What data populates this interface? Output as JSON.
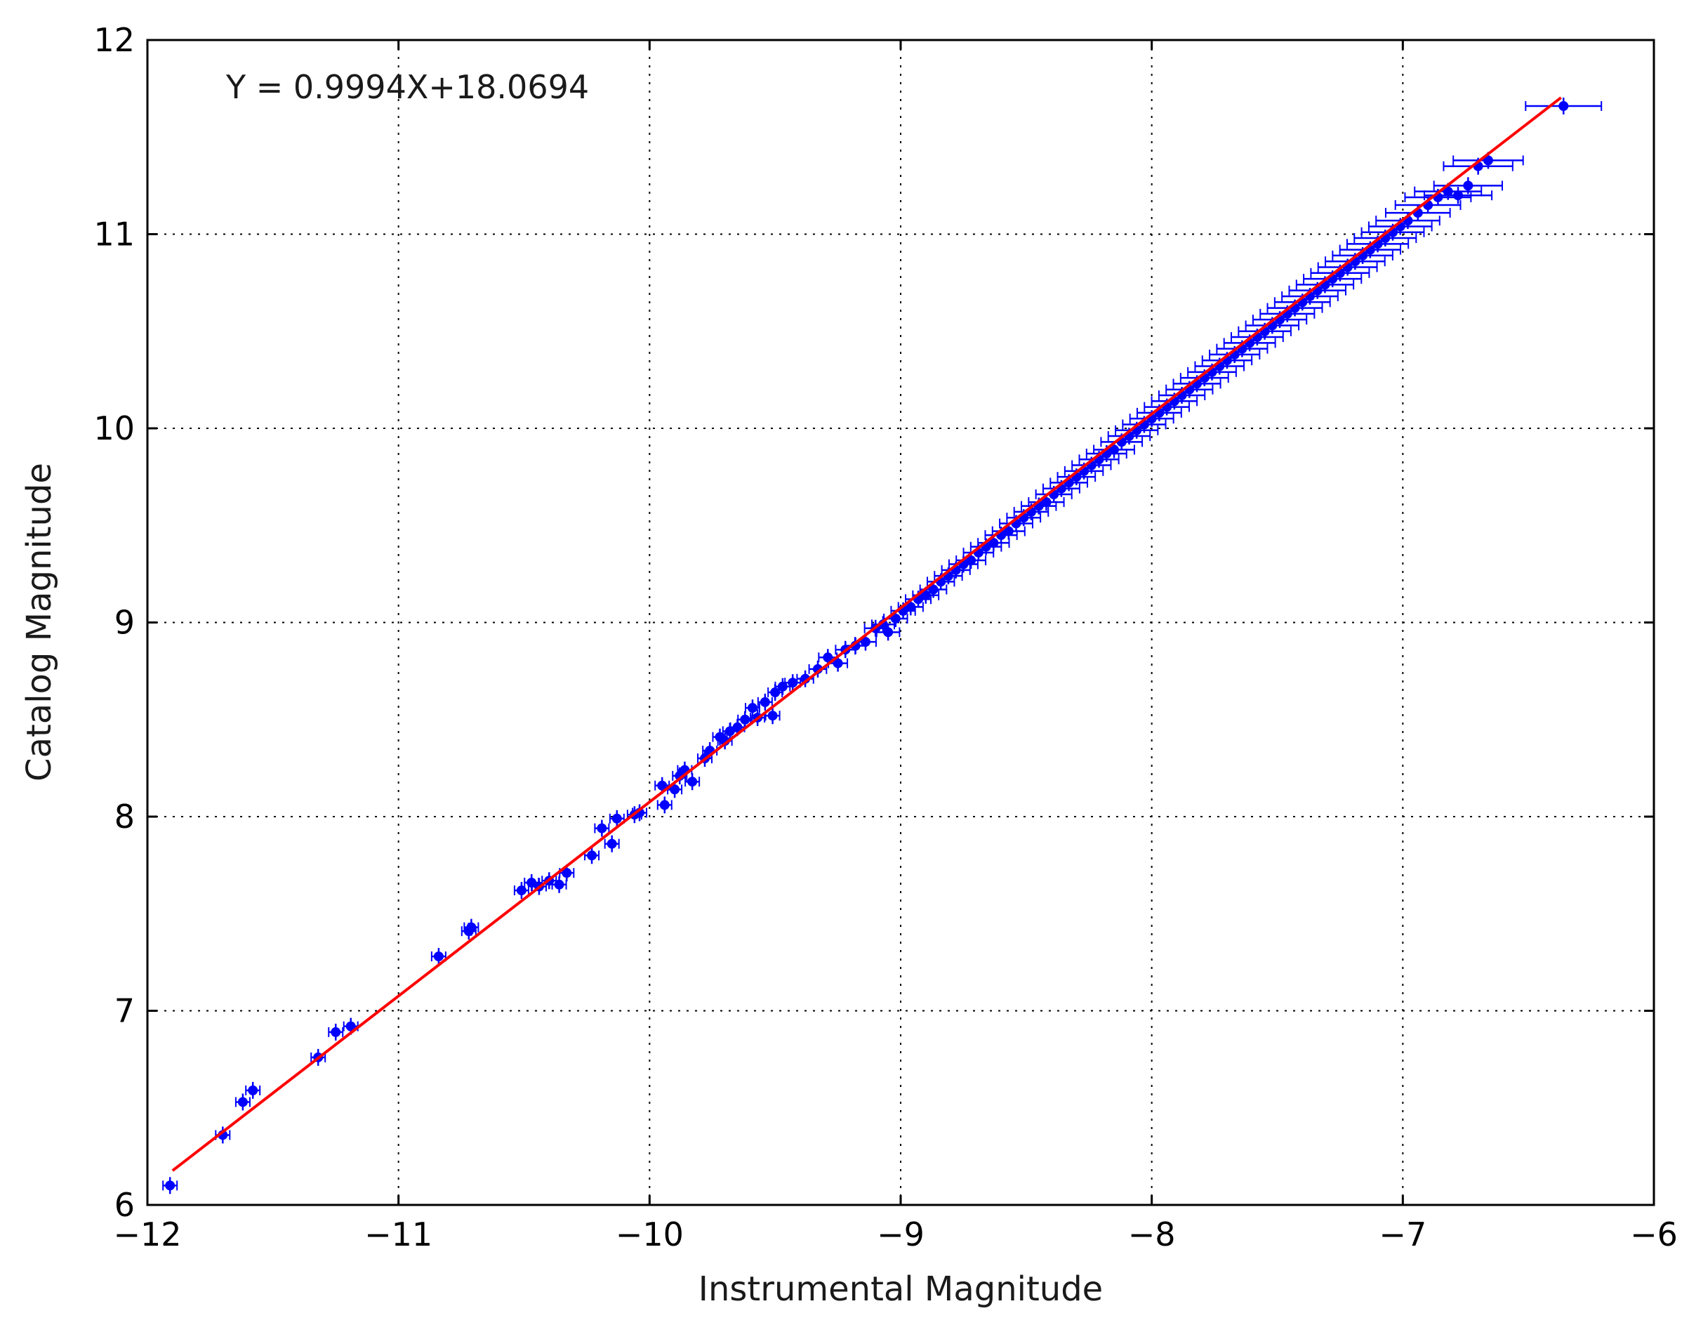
{
  "chart_data": {
    "type": "scatter",
    "title": "",
    "xlabel": "Instrumental Magnitude",
    "ylabel": "Catalog Magnitude",
    "xlim": [
      -12,
      -6
    ],
    "ylim": [
      6,
      12
    ],
    "xticks": [
      -12,
      -11,
      -10,
      -9,
      -8,
      -7,
      -6
    ],
    "yticks": [
      6,
      7,
      8,
      9,
      10,
      11,
      12
    ],
    "xtick_labels": [
      "−12",
      "−11",
      "−10",
      "−9",
      "−8",
      "−7",
      "−6"
    ],
    "ytick_labels": [
      "6",
      "7",
      "8",
      "9",
      "10",
      "11",
      "12"
    ],
    "grid": true,
    "annotation": "Y = 0.9994X+18.0694",
    "colors": {
      "points": "#0000ff",
      "fit": "#ff0000",
      "grid": "#000000",
      "axes": "#000000"
    },
    "fit": {
      "slope": 0.9994,
      "intercept": 18.0694,
      "x_range": [
        -11.9,
        -6.37
      ]
    },
    "series": [
      {
        "kind": "errorbar",
        "points": [
          [
            -11.91,
            6.1
          ],
          [
            -11.7,
            6.36
          ],
          [
            -11.62,
            6.53
          ],
          [
            -11.58,
            6.59
          ],
          [
            -11.32,
            6.76
          ],
          [
            -11.25,
            6.89
          ],
          [
            -11.19,
            6.92
          ],
          [
            -10.84,
            7.28
          ],
          [
            -10.72,
            7.41
          ],
          [
            -10.71,
            7.43
          ],
          [
            -10.51,
            7.62
          ],
          [
            -10.47,
            7.66
          ],
          [
            -10.44,
            7.64
          ],
          [
            -10.4,
            7.67
          ],
          [
            -10.36,
            7.65
          ],
          [
            -10.33,
            7.71
          ],
          [
            -10.23,
            7.8
          ],
          [
            -10.19,
            7.94
          ],
          [
            -10.15,
            7.86
          ],
          [
            -10.13,
            7.99
          ],
          [
            -10.06,
            8.01
          ],
          [
            -10.04,
            8.02
          ],
          [
            -9.95,
            8.16
          ],
          [
            -9.94,
            8.06
          ],
          [
            -9.9,
            8.14
          ],
          [
            -9.88,
            8.21
          ],
          [
            -9.86,
            8.24
          ],
          [
            -9.83,
            8.18
          ],
          [
            -9.78,
            8.3
          ],
          [
            -9.76,
            8.34
          ],
          [
            -9.72,
            8.41
          ],
          [
            -9.7,
            8.39
          ],
          [
            -9.68,
            8.44
          ],
          [
            -9.65,
            8.46
          ],
          [
            -9.62,
            8.5
          ],
          [
            -9.59,
            8.56
          ],
          [
            -9.57,
            8.51
          ],
          [
            -9.54,
            8.59
          ],
          [
            -9.51,
            8.52
          ],
          [
            -9.5,
            8.64
          ],
          [
            -9.47,
            8.67
          ],
          [
            -9.43,
            8.69
          ],
          [
            -9.38,
            8.71
          ],
          [
            -9.33,
            8.76
          ],
          [
            -9.29,
            8.82
          ],
          [
            -9.25,
            8.79
          ],
          [
            -9.22,
            8.86
          ],
          [
            -9.18,
            8.88
          ],
          [
            -9.14,
            8.9
          ],
          [
            -9.1,
            8.97
          ],
          [
            -9.07,
            8.99
          ],
          [
            -9.05,
            8.95
          ],
          [
            -9.02,
            9.02
          ],
          [
            -8.99,
            9.06
          ],
          [
            -8.96,
            9.08
          ],
          [
            -8.93,
            9.12
          ],
          [
            -8.9,
            9.14
          ],
          [
            -8.87,
            9.17
          ],
          [
            -8.84,
            9.21
          ],
          [
            -8.81,
            9.24
          ],
          [
            -8.78,
            9.27
          ],
          [
            -8.75,
            9.3
          ],
          [
            -8.72,
            9.32
          ],
          [
            -8.69,
            9.36
          ],
          [
            -8.66,
            9.39
          ],
          [
            -8.63,
            9.41
          ],
          [
            -8.6,
            9.45
          ],
          [
            -8.57,
            9.47
          ],
          [
            -8.54,
            9.51
          ],
          [
            -8.51,
            9.54
          ],
          [
            -8.48,
            9.57
          ],
          [
            -8.45,
            9.6
          ],
          [
            -8.42,
            9.62
          ],
          [
            -8.39,
            9.66
          ],
          [
            -8.36,
            9.69
          ],
          [
            -8.33,
            9.72
          ],
          [
            -8.3,
            9.75
          ],
          [
            -8.27,
            9.78
          ],
          [
            -8.24,
            9.81
          ],
          [
            -8.21,
            9.84
          ],
          [
            -8.18,
            9.87
          ],
          [
            -8.15,
            9.89
          ],
          [
            -8.12,
            9.93
          ],
          [
            -8.09,
            9.96
          ],
          [
            -8.06,
            9.99
          ],
          [
            -8.03,
            10.02
          ],
          [
            -8.0,
            10.05
          ],
          [
            -7.97,
            10.08
          ],
          [
            -7.94,
            10.11
          ],
          [
            -7.91,
            10.14
          ],
          [
            -7.88,
            10.17
          ],
          [
            -7.85,
            10.2
          ],
          [
            -7.82,
            10.23
          ],
          [
            -7.79,
            10.26
          ],
          [
            -7.76,
            10.29
          ],
          [
            -7.73,
            10.32
          ],
          [
            -7.7,
            10.35
          ],
          [
            -7.67,
            10.38
          ],
          [
            -7.64,
            10.41
          ],
          [
            -7.61,
            10.44
          ],
          [
            -7.58,
            10.47
          ],
          [
            -7.55,
            10.5
          ],
          [
            -7.52,
            10.53
          ],
          [
            -7.49,
            10.56
          ],
          [
            -7.46,
            10.59
          ],
          [
            -7.43,
            10.62
          ],
          [
            -7.4,
            10.65
          ],
          [
            -7.37,
            10.68
          ],
          [
            -7.34,
            10.71
          ],
          [
            -7.31,
            10.74
          ],
          [
            -7.28,
            10.77
          ],
          [
            -7.25,
            10.8
          ],
          [
            -7.22,
            10.83
          ],
          [
            -7.19,
            10.86
          ],
          [
            -7.16,
            10.89
          ],
          [
            -7.13,
            10.92
          ],
          [
            -7.1,
            10.95
          ],
          [
            -7.07,
            10.98
          ],
          [
            -7.04,
            11.01
          ],
          [
            -7.01,
            11.04
          ],
          [
            -6.98,
            11.07
          ],
          [
            -6.94,
            11.11
          ],
          [
            -6.9,
            11.15
          ],
          [
            -6.86,
            11.19
          ],
          [
            -6.82,
            11.22
          ],
          [
            -6.78,
            11.2
          ],
          [
            -6.74,
            11.25
          ],
          [
            -6.7,
            11.35
          ],
          [
            -6.66,
            11.38
          ],
          [
            -6.36,
            11.66
          ]
        ]
      }
    ]
  }
}
